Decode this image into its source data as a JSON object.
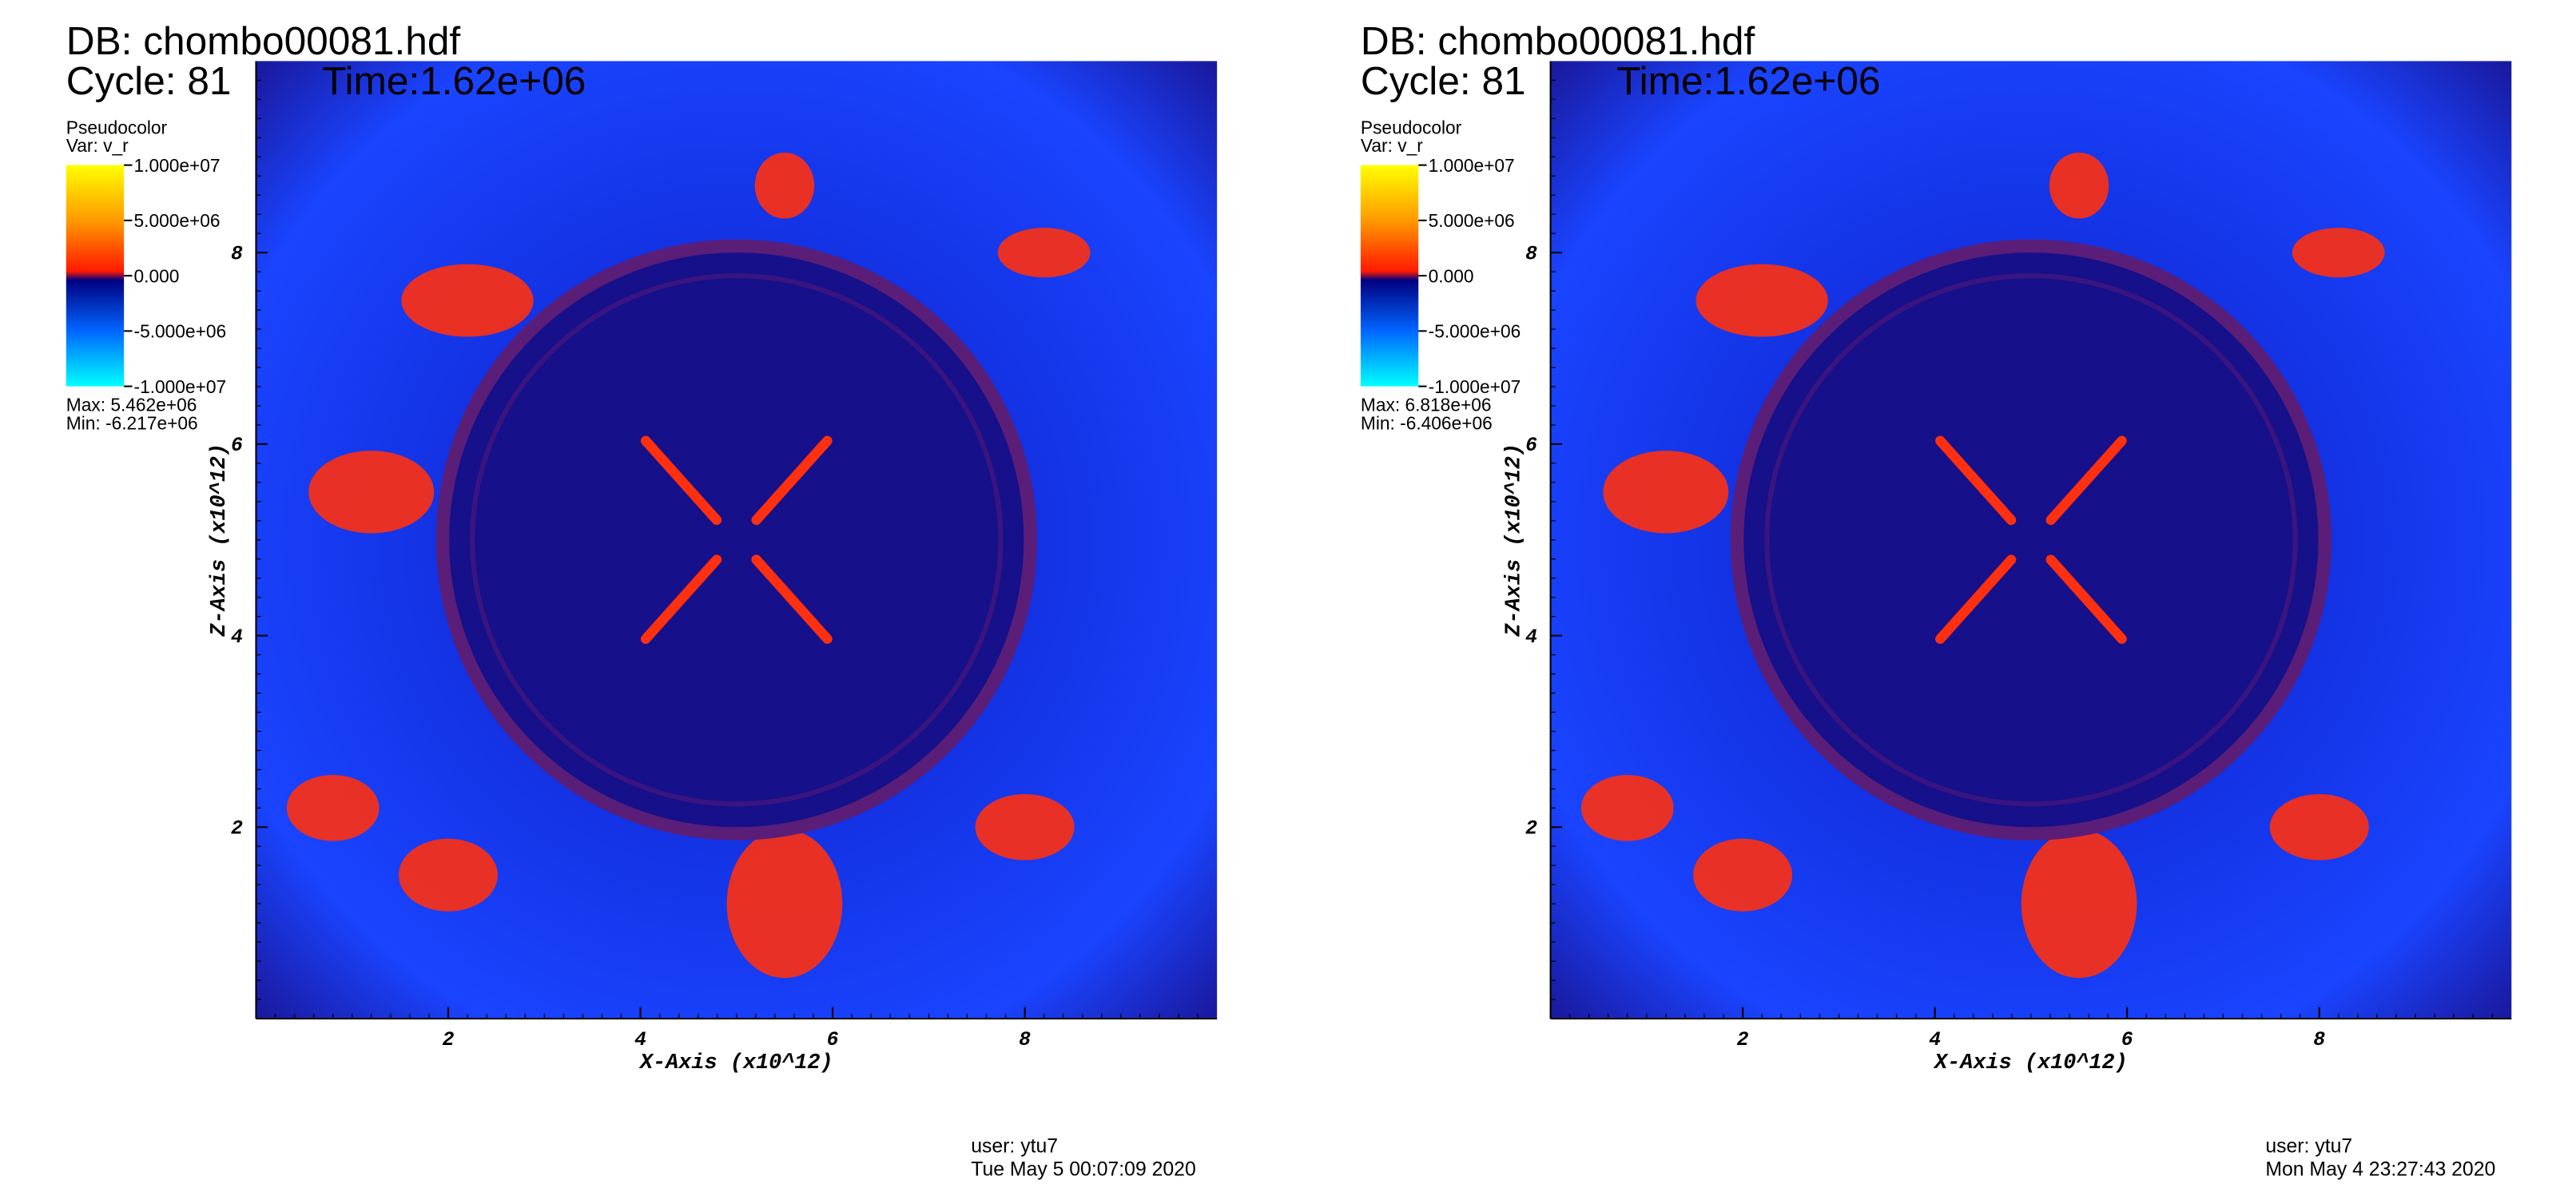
{
  "panels": [
    {
      "db": "DB: chombo00081.hdf",
      "cycle": "Cycle: 81",
      "time": "Time:1.62e+06",
      "legend": {
        "title": "Pseudocolor",
        "var": "Var: v_r",
        "ticks": [
          {
            "value": 10000000,
            "label": "1.000e+07"
          },
          {
            "value": 5000000,
            "label": "5.000e+06"
          },
          {
            "value": 0,
            "label": "0.000"
          },
          {
            "value": -5000000,
            "label": "-5.000e+06"
          },
          {
            "value": -10000000,
            "label": "-1.000e+07"
          }
        ],
        "max": "Max:  5.462e+06",
        "min": "Min: -6.217e+06"
      },
      "x_axis": {
        "title": "X-Axis (x10^12)",
        "lim": [
          0,
          10
        ],
        "ticks": [
          2,
          4,
          6,
          8
        ]
      },
      "y_axis": {
        "title": "Z-Axis (x10^12)",
        "lim": [
          0,
          10
        ],
        "ticks": [
          2,
          4,
          6,
          8
        ]
      },
      "user": "user: ytu7",
      "date": "Tue May  5 00:07:09 2020"
    },
    {
      "db": "DB: chombo00081.hdf",
      "cycle": "Cycle: 81",
      "time": "Time:1.62e+06",
      "legend": {
        "title": "Pseudocolor",
        "var": "Var: v_r",
        "ticks": [
          {
            "value": 10000000,
            "label": "1.000e+07"
          },
          {
            "value": 5000000,
            "label": "5.000e+06"
          },
          {
            "value": 0,
            "label": "0.000"
          },
          {
            "value": -5000000,
            "label": "-5.000e+06"
          },
          {
            "value": -10000000,
            "label": "-1.000e+07"
          }
        ],
        "max": "Max:  6.818e+06",
        "min": "Min: -6.406e+06"
      },
      "x_axis": {
        "title": "X-Axis (x10^12)",
        "lim": [
          0,
          10
        ],
        "ticks": [
          2,
          4,
          6,
          8
        ]
      },
      "y_axis": {
        "title": "Z-Axis (x10^12)",
        "lim": [
          0,
          10
        ],
        "ticks": [
          2,
          4,
          6,
          8
        ]
      },
      "user": "user: ytu7",
      "date": "Mon May  4 23:27:43 2020"
    }
  ]
}
